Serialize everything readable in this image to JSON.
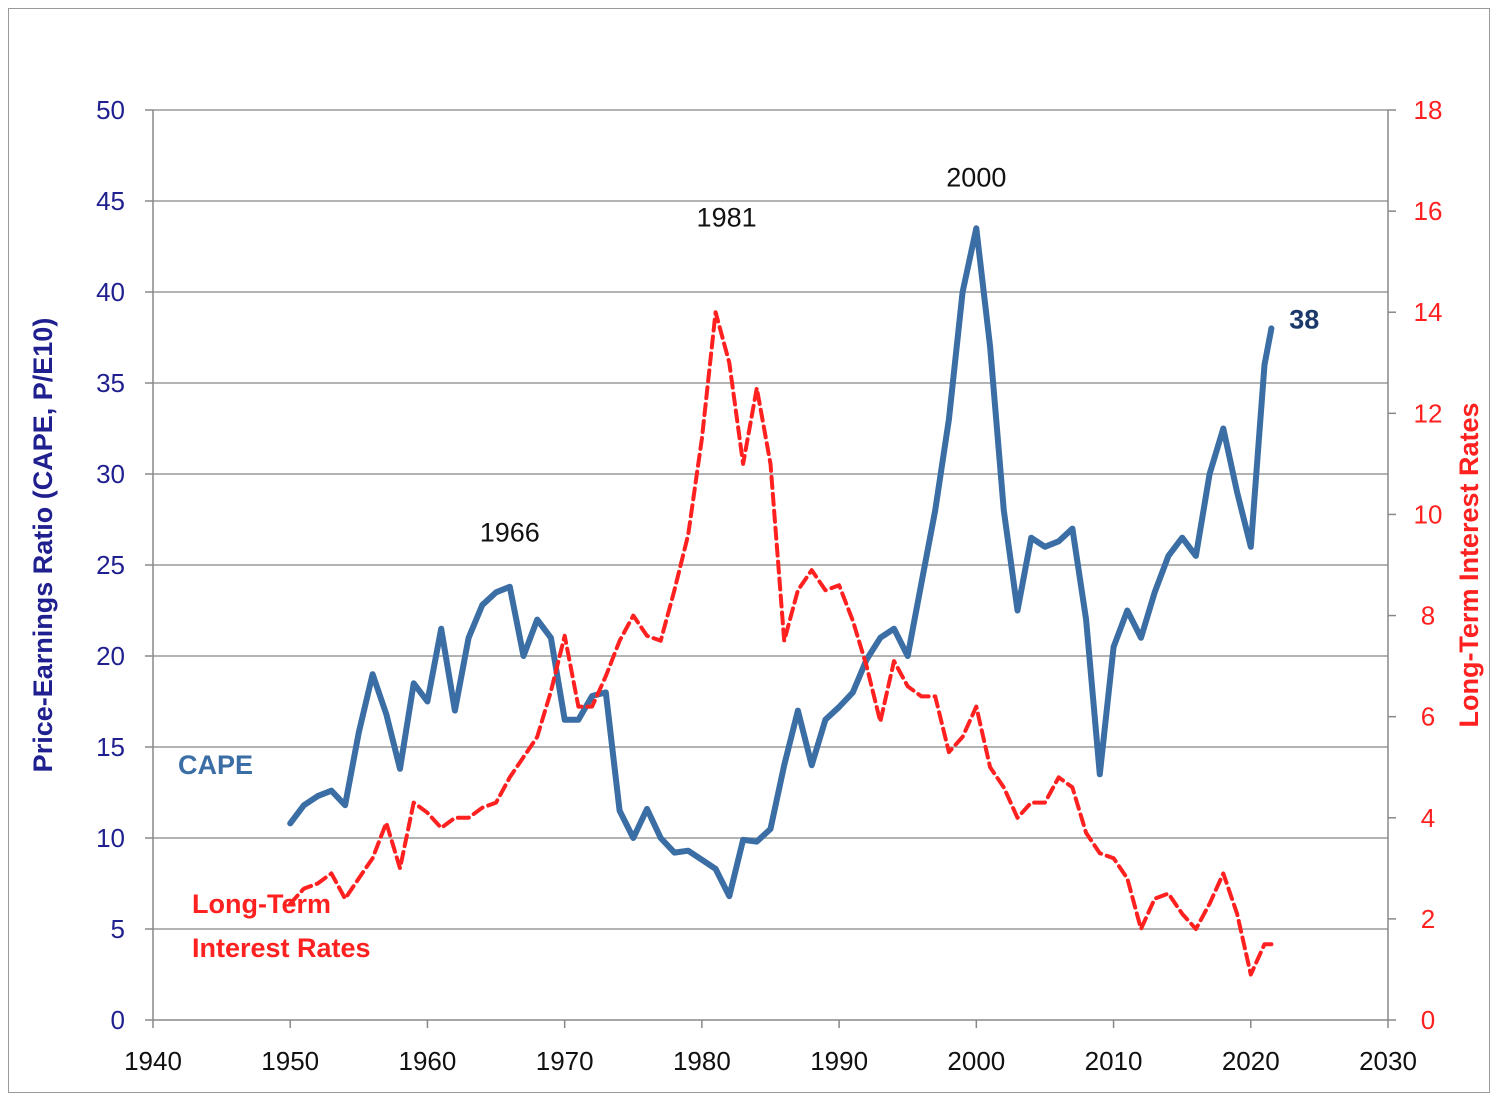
{
  "chart_data": {
    "type": "line",
    "ylabel": "Price-Earnings Ratio (CAPE, P/E10)",
    "y2label": "Long-Term Interest Rates",
    "xlim": [
      1940,
      2030
    ],
    "ylim": [
      0,
      50
    ],
    "y2lim": [
      0,
      18
    ],
    "x_ticks": [
      "1940",
      "1950",
      "1960",
      "1970",
      "1980",
      "1990",
      "2000",
      "2010",
      "2020",
      "2030"
    ],
    "y_ticks": [
      "0",
      "5",
      "10",
      "15",
      "20",
      "25",
      "30",
      "35",
      "40",
      "45",
      "50"
    ],
    "y2_ticks": [
      "0",
      "2",
      "4",
      "6",
      "8",
      "10",
      "12",
      "14",
      "16",
      "18"
    ],
    "grid": "horizontal",
    "annotations": [
      {
        "text": "1966",
        "x": 1966,
        "y": 26.3
      },
      {
        "text": "1981",
        "x": 1981.8,
        "y": 43.6
      },
      {
        "text": "2000",
        "x": 2000,
        "y": 45.8
      },
      {
        "text": "38",
        "x": 2023.9,
        "y": 38.0
      }
    ],
    "series_labels": {
      "cape": "CAPE",
      "rates_line1": "Long-Term",
      "rates_line2": "Interest Rates"
    },
    "series": [
      {
        "name": "CAPE",
        "axis": "left",
        "color": "#3a6ea5",
        "style": "solid",
        "x": [
          1950,
          1951,
          1952,
          1953,
          1954,
          1955,
          1956,
          1957,
          1958,
          1959,
          1960,
          1961,
          1962,
          1963,
          1964,
          1965,
          1966,
          1967,
          1968,
          1969,
          1970,
          1971,
          1972,
          1973,
          1974,
          1975,
          1976,
          1977,
          1978,
          1979,
          1980,
          1981,
          1982,
          1983,
          1984,
          1985,
          1986,
          1987,
          1988,
          1989,
          1990,
          1991,
          1992,
          1993,
          1994,
          1995,
          1996,
          1997,
          1998,
          1999,
          2000,
          2001,
          2002,
          2003,
          2004,
          2005,
          2006,
          2007,
          2008,
          2009,
          2010,
          2011,
          2012,
          2013,
          2014,
          2015,
          2016,
          2017,
          2018,
          2019,
          2020,
          2021,
          2021.5
        ],
        "values": [
          10.8,
          11.8,
          12.3,
          12.6,
          11.8,
          15.8,
          19.0,
          16.8,
          13.8,
          18.5,
          17.5,
          21.5,
          17.0,
          21.0,
          22.8,
          23.5,
          23.8,
          20.0,
          22.0,
          21.0,
          16.5,
          16.5,
          17.8,
          18.0,
          11.5,
          10.0,
          11.6,
          10.0,
          9.2,
          9.3,
          8.8,
          8.3,
          6.8,
          9.9,
          9.8,
          10.5,
          14.0,
          17.0,
          14.0,
          16.5,
          17.2,
          18.0,
          19.8,
          21.0,
          21.5,
          20.0,
          24.0,
          28.0,
          33.0,
          40.0,
          43.5,
          37.0,
          28.0,
          22.5,
          26.5,
          26.0,
          26.3,
          27.0,
          22.0,
          13.5,
          20.5,
          22.5,
          21.0,
          23.5,
          25.5,
          26.5,
          25.5,
          30.0,
          32.5,
          29.0,
          26.0,
          36.0,
          38.0
        ]
      },
      {
        "name": "Long-Term Interest Rates",
        "axis": "right",
        "color": "#ff2020",
        "style": "dashed",
        "x": [
          1950,
          1951,
          1952,
          1953,
          1954,
          1955,
          1956,
          1957,
          1958,
          1959,
          1960,
          1961,
          1962,
          1963,
          1964,
          1965,
          1966,
          1967,
          1968,
          1969,
          1970,
          1971,
          1972,
          1973,
          1974,
          1975,
          1976,
          1977,
          1978,
          1979,
          1980,
          1981,
          1982,
          1983,
          1984,
          1985,
          1986,
          1987,
          1988,
          1989,
          1990,
          1991,
          1992,
          1993,
          1994,
          1995,
          1996,
          1997,
          1998,
          1999,
          2000,
          2001,
          2002,
          2003,
          2004,
          2005,
          2006,
          2007,
          2008,
          2009,
          2010,
          2011,
          2012,
          2013,
          2014,
          2015,
          2016,
          2017,
          2018,
          2019,
          2020,
          2021,
          2021.5
        ],
        "values": [
          2.3,
          2.6,
          2.7,
          2.9,
          2.4,
          2.8,
          3.2,
          3.9,
          3.0,
          4.3,
          4.1,
          3.8,
          4.0,
          4.0,
          4.2,
          4.3,
          4.8,
          5.2,
          5.6,
          6.5,
          7.6,
          6.2,
          6.2,
          6.8,
          7.5,
          8.0,
          7.6,
          7.5,
          8.5,
          9.6,
          11.5,
          14.0,
          13.0,
          11.0,
          12.5,
          11.0,
          7.5,
          8.5,
          8.9,
          8.5,
          8.6,
          7.9,
          7.0,
          5.9,
          7.1,
          6.6,
          6.4,
          6.4,
          5.3,
          5.6,
          6.2,
          5.0,
          4.6,
          4.0,
          4.3,
          4.3,
          4.8,
          4.6,
          3.7,
          3.3,
          3.2,
          2.8,
          1.8,
          2.4,
          2.5,
          2.1,
          1.8,
          2.3,
          2.9,
          2.1,
          0.9,
          1.5,
          1.5
        ]
      }
    ]
  }
}
